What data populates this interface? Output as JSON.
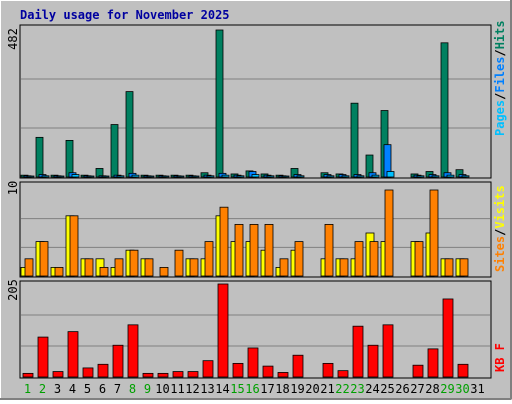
{
  "title": "Daily usage for November 2025",
  "colors": {
    "background": "#c0c0c0",
    "title": "#0000a0",
    "pages": "#00c0ff",
    "files": "#0080ff",
    "hits": "#008060",
    "sites": "#ff8000",
    "visits": "#ffff00",
    "kbytes": "#ff0000",
    "weekend_day": "#00a000"
  },
  "chart_data": [
    {
      "type": "bar",
      "panel": "hits-files-pages",
      "ymax_label": "482",
      "ymax": 482,
      "labels": {
        "pages": "Pages",
        "files": "Files",
        "hits": "Hits",
        "sep": "/"
      },
      "categories": [
        "1",
        "2",
        "3",
        "4",
        "5",
        "6",
        "7",
        "8",
        "9",
        "10",
        "11",
        "12",
        "13",
        "14",
        "15",
        "16",
        "17",
        "18",
        "19",
        "20",
        "21",
        "22",
        "23",
        "24",
        "25",
        "26",
        "27",
        "28",
        "29",
        "30",
        "31"
      ],
      "series": [
        {
          "name": "Hits",
          "values": [
            6,
            130,
            6,
            120,
            6,
            28,
            172,
            280,
            6,
            6,
            6,
            6,
            14,
            482,
            10,
            20,
            10,
            6,
            28,
            0,
            14,
            10,
            242,
            72,
            218,
            0,
            10,
            18,
            440,
            24,
            0
          ]
        },
        {
          "name": "Files",
          "values": [
            4,
            8,
            4,
            14,
            4,
            4,
            6,
            12,
            4,
            4,
            4,
            4,
            6,
            12,
            6,
            18,
            6,
            4,
            8,
            0,
            8,
            8,
            8,
            14,
            106,
            0,
            6,
            8,
            14,
            8,
            0
          ]
        },
        {
          "name": "Pages",
          "values": [
            3,
            4,
            3,
            8,
            3,
            3,
            4,
            6,
            3,
            3,
            3,
            3,
            4,
            6,
            4,
            8,
            4,
            3,
            4,
            0,
            4,
            4,
            4,
            6,
            18,
            0,
            4,
            4,
            6,
            4,
            0
          ]
        }
      ]
    },
    {
      "type": "bar",
      "panel": "visits-sites",
      "ymax_label": "10",
      "ymax": 10,
      "labels": {
        "sites": "Sites",
        "visits": "Visits",
        "sep": "/"
      },
      "categories": [
        "1",
        "2",
        "3",
        "4",
        "5",
        "6",
        "7",
        "8",
        "9",
        "10",
        "11",
        "12",
        "13",
        "14",
        "15",
        "16",
        "17",
        "18",
        "19",
        "20",
        "21",
        "22",
        "23",
        "24",
        "25",
        "26",
        "27",
        "28",
        "29",
        "30",
        "31"
      ],
      "series": [
        {
          "name": "Visits",
          "values": [
            1,
            4,
            1,
            7,
            2,
            2,
            1,
            3,
            2,
            0,
            0,
            2,
            2,
            7,
            4,
            4,
            3,
            1,
            3,
            0,
            2,
            2,
            2,
            5,
            4,
            0,
            4,
            5,
            2,
            2,
            0
          ]
        },
        {
          "name": "Sites",
          "values": [
            2,
            4,
            1,
            7,
            2,
            1,
            2,
            3,
            2,
            1,
            3,
            2,
            4,
            8,
            6,
            6,
            6,
            2,
            4,
            0,
            6,
            2,
            4,
            4,
            10,
            0,
            4,
            10,
            2,
            2,
            0
          ]
        }
      ]
    },
    {
      "type": "bar",
      "panel": "kbytes",
      "ymax_label": "205",
      "ymax": 205,
      "labels": {
        "kbytes": "KB F"
      },
      "categories": [
        "1",
        "2",
        "3",
        "4",
        "5",
        "6",
        "7",
        "8",
        "9",
        "10",
        "11",
        "12",
        "13",
        "14",
        "15",
        "16",
        "17",
        "18",
        "19",
        "20",
        "21",
        "22",
        "23",
        "24",
        "25",
        "26",
        "27",
        "28",
        "29",
        "30",
        "31"
      ],
      "series": [
        {
          "name": "KB F",
          "values": [
            8,
            88,
            12,
            100,
            20,
            28,
            70,
            115,
            8,
            8,
            12,
            12,
            36,
            205,
            30,
            64,
            24,
            10,
            48,
            0,
            30,
            14,
            112,
            70,
            115,
            0,
            26,
            62,
            172,
            28,
            0
          ]
        }
      ]
    }
  ],
  "day_labels": [
    "1",
    "2",
    "3",
    "4",
    "5",
    "6",
    "7",
    "8",
    "9",
    "10",
    "11",
    "12",
    "13",
    "14",
    "15",
    "16",
    "17",
    "18",
    "19",
    "20",
    "21",
    "22",
    "23",
    "24",
    "25",
    "26",
    "27",
    "28",
    "29",
    "30",
    "31"
  ],
  "weekend_days": [
    1,
    2,
    8,
    9,
    15,
    16,
    22,
    23,
    29,
    30
  ]
}
